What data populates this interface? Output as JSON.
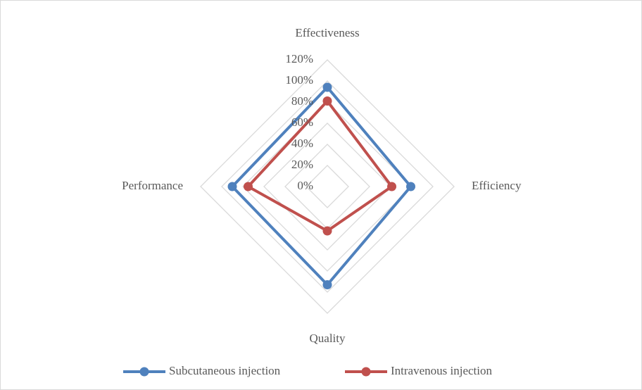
{
  "chart_data": {
    "type": "radar",
    "categories": [
      "Effectiveness",
      "Efficiency",
      "Quality",
      "Performance"
    ],
    "series": [
      {
        "name": "Subcutaneous injection",
        "color": "#4f81bd",
        "values": [
          94,
          79,
          93,
          90
        ]
      },
      {
        "name": "Intravenous injection",
        "color": "#c0504d",
        "values": [
          81,
          61,
          42,
          75
        ]
      }
    ],
    "ylim": [
      0,
      120
    ],
    "yticks": [
      {
        "value": 0,
        "label": "0%"
      },
      {
        "value": 20,
        "label": "20%"
      },
      {
        "value": 40,
        "label": "40%"
      },
      {
        "value": 60,
        "label": "60%"
      },
      {
        "value": 80,
        "label": "80%"
      },
      {
        "value": 100,
        "label": "100%"
      },
      {
        "value": 120,
        "label": "120%"
      }
    ],
    "grid": true,
    "legend": "bottom"
  }
}
